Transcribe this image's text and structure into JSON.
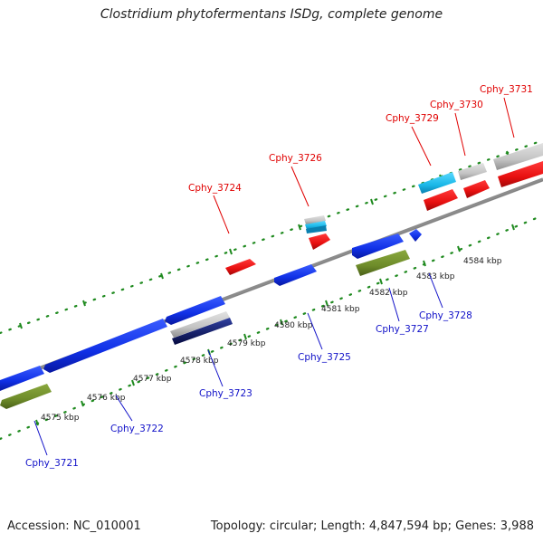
{
  "title": "Clostridium phytofermentans ISDg, complete genome",
  "footer": {
    "accession": "Accession: NC_010001",
    "topology": "Topology: circular; Length: 4,847,594 bp; Genes: 3,988"
  },
  "colors": {
    "backbone": "#8c8c8c",
    "tick": "#1f8a1f",
    "label_top": "#e00000",
    "label_bottom": "#1010c8",
    "blue_gene": "#1030e6",
    "red_gene": "#e81010",
    "olive_gene": "#6e8c2a",
    "gray_gene": "#c4c4c4",
    "cyan_gene": "#1ab8e8",
    "navy_gene": "#0a1060"
  },
  "scale": {
    "unit": "kbp",
    "labels": [
      "4575 kbp",
      "4576 kbp",
      "4577 kbp",
      "4578 kbp",
      "4579 kbp",
      "4580 kbp",
      "4581 kbp",
      "4582 kbp",
      "4583 kbp",
      "4584 kbp"
    ]
  },
  "genes_top": [
    "Cphy_3724",
    "Cphy_3726",
    "Cphy_3729",
    "Cphy_3730",
    "Cphy_3731"
  ],
  "genes_bottom": [
    "Cphy_3721",
    "Cphy_3722",
    "Cphy_3723",
    "Cphy_3725",
    "Cphy_3727",
    "Cphy_3728"
  ]
}
